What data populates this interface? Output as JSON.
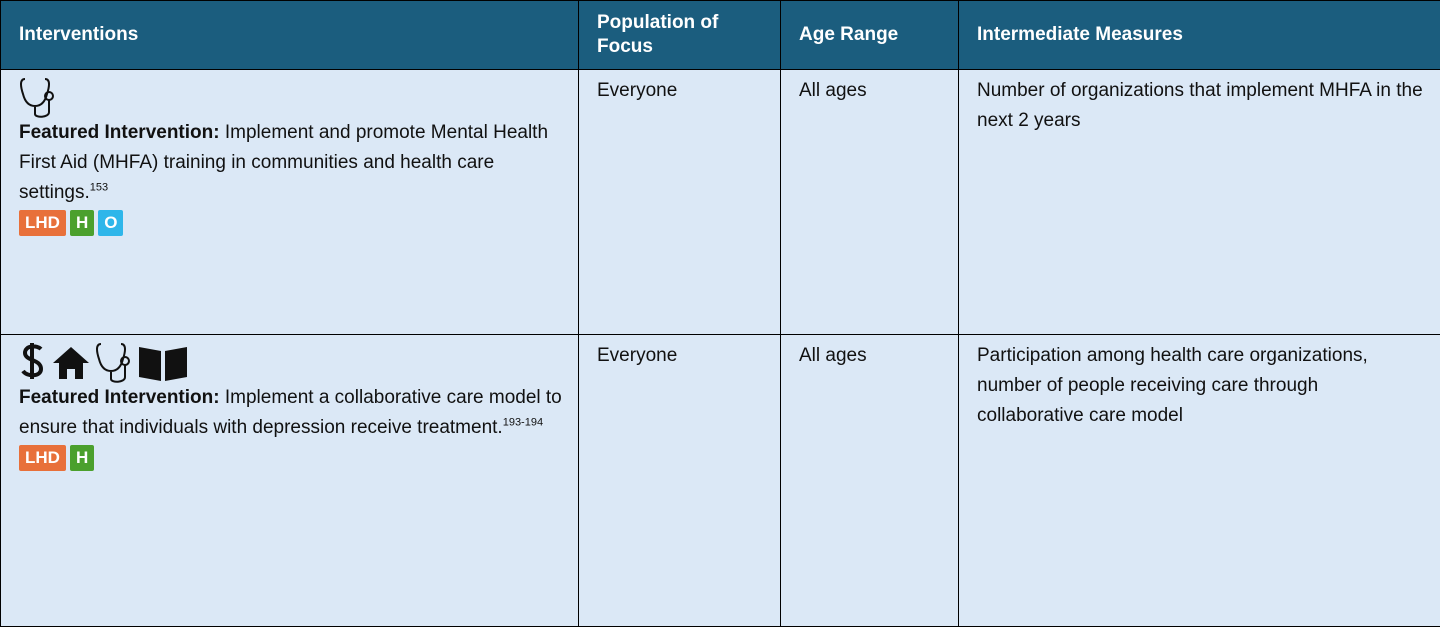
{
  "table": {
    "headers": [
      "Interventions",
      "Population of Focus",
      "Age Range",
      "Intermediate Measures"
    ],
    "rows": [
      {
        "label": "Featured Intervention:",
        "text": "Implement and promote Mental Health First Aid (MHFA) training in communities and health care settings.",
        "ref": "153",
        "tags": [
          "LHD",
          "H",
          "O"
        ],
        "population": "Everyone",
        "age": "All ages",
        "measures": "Number of organizations that implement MHFA in the next 2 years"
      },
      {
        "label": "Featured Intervention:",
        "text": "Implement a collaborative care model to ensure that individuals with depression receive treatment.",
        "ref": "193-194",
        "tags": [
          "LHD",
          "H"
        ],
        "population": "Everyone",
        "age": "All ages",
        "measures": "Participation among health care organizations, number of people receiving care through collaborative care model"
      }
    ]
  }
}
